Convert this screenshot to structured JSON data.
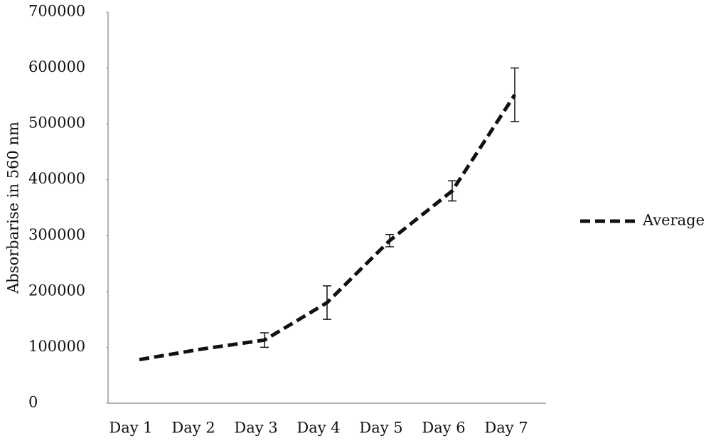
{
  "chart_data": {
    "type": "line",
    "y_label": "Absorbarise in 560 nm",
    "categories": [
      "Day 1",
      "Day 2",
      "Day 3",
      "Day 4",
      "Day 5",
      "Day 6",
      "Day 7"
    ],
    "series": [
      {
        "name": "Average",
        "color": "#111111",
        "values": [
          78000,
          97000,
          113000,
          180000,
          291000,
          380000,
          552000
        ],
        "errors": [
          null,
          null,
          13000,
          30000,
          11000,
          18000,
          48000
        ]
      }
    ],
    "ylim": [
      0,
      700000
    ],
    "yticks": [
      0,
      100000,
      200000,
      300000,
      400000,
      500000,
      600000,
      700000
    ],
    "grid": false,
    "legend": "right"
  }
}
